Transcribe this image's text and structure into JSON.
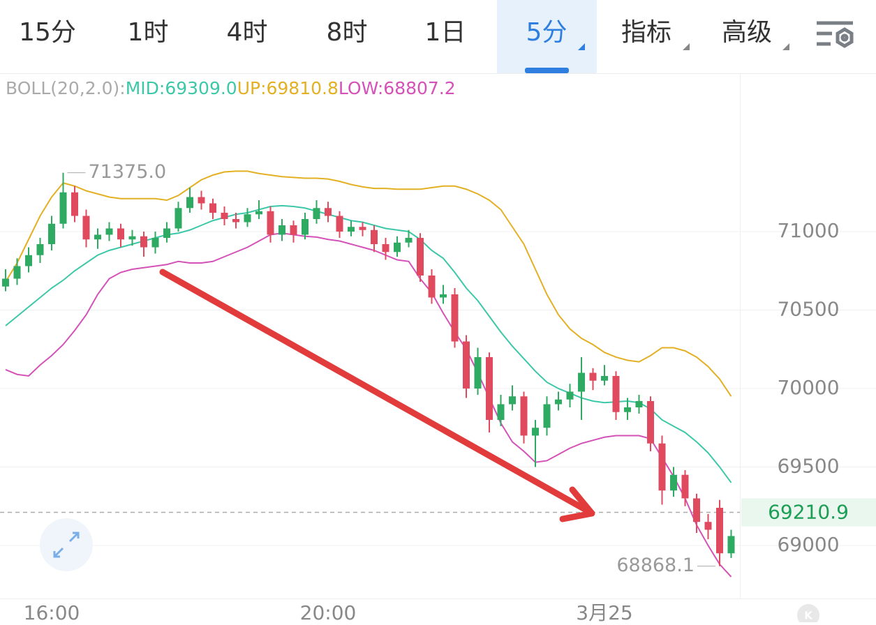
{
  "tabs": [
    "15分",
    "1时",
    "4时",
    "8时",
    "1日",
    "5分",
    "指标",
    "高级"
  ],
  "chart_data": {
    "type": "candlestick",
    "categories": [
      null,
      null,
      null,
      null,
      "16:00",
      null,
      null,
      null,
      null,
      null,
      null,
      null,
      null,
      null,
      null,
      null,
      null,
      null,
      null,
      null,
      null,
      null,
      null,
      null,
      null,
      null,
      null,
      null,
      "20:00",
      null,
      null,
      null,
      null,
      null,
      null,
      null,
      null,
      null,
      null,
      null,
      null,
      null,
      null,
      null,
      null,
      null,
      null,
      null,
      null,
      null,
      null,
      null,
      "3月25",
      null,
      null,
      null,
      null,
      null,
      null,
      null,
      null,
      null,
      null,
      null
    ],
    "open": [
      70650,
      70700,
      70780,
      70850,
      70920,
      71050,
      71250,
      71100,
      70950,
      70980,
      71020,
      70950,
      70970,
      70900,
      70960,
      71020,
      71150,
      71220,
      71180,
      71120,
      71080,
      71060,
      71110,
      71130,
      70980,
      71040,
      70980,
      71080,
      71150,
      71100,
      71000,
      71030,
      71010,
      70920,
      70870,
      70930,
      70960,
      70720,
      70580,
      70600,
      70300,
      70000,
      70200,
      69800,
      69900,
      69950,
      69700,
      69750,
      69900,
      69930,
      69980,
      70100,
      70050,
      70080,
      69850,
      69880,
      69920,
      69650,
      69350,
      69450,
      69300,
      69150,
      69240,
      68950
    ],
    "high": [
      70760,
      70830,
      70900,
      70960,
      71100,
      71375,
      71290,
      71140,
      71020,
      71060,
      71050,
      71010,
      71000,
      71000,
      71060,
      71190,
      71280,
      71260,
      71210,
      71160,
      71120,
      71150,
      71200,
      71160,
      71080,
      71070,
      71120,
      71200,
      71190,
      71130,
      71070,
      71060,
      71040,
      70960,
      70970,
      71010,
      70990,
      70760,
      70660,
      70640,
      70340,
      70260,
      70230,
      69960,
      70020,
      69980,
      69800,
      69950,
      69980,
      70030,
      70200,
      70130,
      70150,
      70110,
      69940,
      69960,
      69950,
      69700,
      69500,
      69480,
      69330,
      69200,
      69290,
      69100
    ],
    "low": [
      70620,
      70660,
      70740,
      70800,
      70880,
      71020,
      71060,
      70900,
      70890,
      70940,
      70900,
      70910,
      70840,
      70860,
      70930,
      71000,
      71120,
      71140,
      71080,
      71040,
      71020,
      71030,
      71080,
      70930,
      70940,
      70930,
      70950,
      71050,
      71060,
      70960,
      70970,
      70970,
      70870,
      70820,
      70840,
      70900,
      70680,
      70540,
      70540,
      70260,
      69940,
      69960,
      69720,
      69760,
      69860,
      69650,
      69500,
      69700,
      69860,
      69880,
      69800,
      69990,
      70020,
      69800,
      69800,
      69840,
      69600,
      69260,
      69310,
      69250,
      69080,
      69040,
      68868.1,
      68920
    ],
    "close": [
      70700,
      70780,
      70850,
      70920,
      71050,
      71250,
      71100,
      70950,
      70980,
      71020,
      70950,
      70970,
      70900,
      70960,
      71020,
      71150,
      71220,
      71180,
      71120,
      71080,
      71060,
      71110,
      71130,
      70980,
      71040,
      70980,
      71080,
      71150,
      71100,
      71000,
      71030,
      71010,
      70920,
      70870,
      70930,
      70960,
      70720,
      70580,
      70600,
      70300,
      70000,
      70200,
      69800,
      69900,
      69950,
      69700,
      69750,
      69900,
      69930,
      69980,
      70100,
      70050,
      70080,
      69850,
      69880,
      69920,
      69650,
      69350,
      69450,
      69300,
      69150,
      69100,
      68950,
      69060
    ],
    "up_color": "#2eaa62",
    "down_color": "#e04a5f",
    "indicator": {
      "name": "BOLL(20,2.0):",
      "series": [
        {
          "name": "MID:69309.0",
          "color": "#3cc8a8",
          "values": [
            70400,
            70460,
            70520,
            70580,
            70640,
            70690,
            70750,
            70800,
            70850,
            70880,
            70900,
            70920,
            70940,
            70960,
            70980,
            70990,
            71010,
            71040,
            71070,
            71090,
            71110,
            71120,
            71140,
            71160,
            71165,
            71160,
            71150,
            71130,
            71110,
            71090,
            71070,
            71060,
            71040,
            71020,
            71010,
            71000,
            70950,
            70880,
            70830,
            70740,
            70640,
            70560,
            70460,
            70360,
            70270,
            70190,
            70110,
            70040,
            70000,
            69970,
            69940,
            69920,
            69910,
            69915,
            69920,
            69910,
            69870,
            69800,
            69760,
            69720,
            69660,
            69590,
            69500,
            69400
          ]
        },
        {
          "name": "UP:69810.8",
          "color": "#e3b023",
          "values": [
            70680,
            70800,
            70950,
            71100,
            71220,
            71310,
            71290,
            71260,
            71240,
            71220,
            71210,
            71210,
            71210,
            71210,
            71200,
            71230,
            71280,
            71330,
            71360,
            71380,
            71385,
            71385,
            71370,
            71360,
            71350,
            71345,
            71340,
            71340,
            71335,
            71320,
            71300,
            71285,
            71275,
            71275,
            71270,
            71270,
            71270,
            71280,
            71290,
            71290,
            71270,
            71240,
            71200,
            71140,
            71030,
            70920,
            70760,
            70600,
            70470,
            70380,
            70320,
            70280,
            70230,
            70200,
            70180,
            70170,
            70210,
            70260,
            70260,
            70240,
            70200,
            70140,
            70060,
            69950
          ]
        },
        {
          "name": "LOW:68807.2",
          "color": "#d452b8",
          "values": [
            70120,
            70090,
            70080,
            70150,
            70210,
            70280,
            70370,
            70470,
            70600,
            70700,
            70740,
            70760,
            70770,
            70780,
            70790,
            70810,
            70800,
            70800,
            70810,
            70840,
            70870,
            70900,
            70940,
            70980,
            70990,
            70980,
            70970,
            70965,
            70950,
            70940,
            70920,
            70900,
            70880,
            70850,
            70820,
            70810,
            70700,
            70610,
            70480,
            70360,
            70250,
            70100,
            69940,
            69780,
            69660,
            69600,
            69530,
            69540,
            69580,
            69620,
            69650,
            69670,
            69690,
            69700,
            69700,
            69700,
            69680,
            69560,
            69440,
            69300,
            69130,
            69000,
            68880,
            68800
          ]
        }
      ]
    },
    "ylim": [
      68662,
      72009
    ],
    "yticks": [
      71000,
      70500,
      70000,
      69500,
      69000
    ],
    "grid": true,
    "current_price": 69210.9,
    "max_marker": {
      "value": 71375,
      "label": "71375.0"
    },
    "min_marker": {
      "value": 68868.1,
      "label": "68868.1"
    }
  }
}
